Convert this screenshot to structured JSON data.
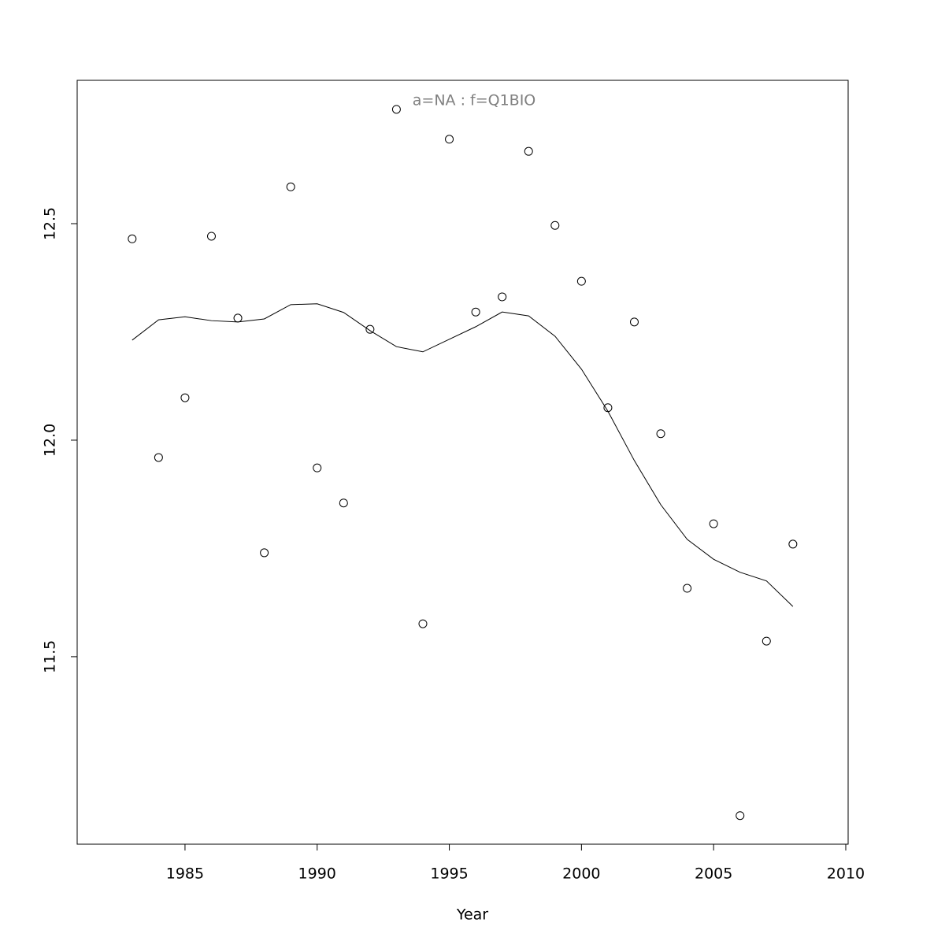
{
  "chart_data": {
    "type": "scatter",
    "title": "a=NA  :  f=Q1BIO",
    "x_label": "Year",
    "x": [
      1983,
      1984,
      1985,
      1986,
      1987,
      1988,
      1989,
      1990,
      1991,
      1992,
      1993,
      1994,
      1995,
      1996,
      1997,
      1998,
      1999,
      2000,
      2001,
      2002,
      2003,
      2004,
      2005,
      2006,
      2007,
      2008
    ],
    "series": [
      {
        "type": "scatter",
        "color": "#000000",
        "values": [
          12.465,
          11.96,
          12.098,
          12.471,
          12.282,
          11.74,
          12.585,
          11.936,
          11.855,
          12.256,
          12.764,
          11.576,
          12.695,
          12.296,
          12.331,
          12.667,
          12.496,
          12.367,
          12.075,
          12.273,
          12.015,
          11.658,
          11.807,
          11.133,
          11.536,
          11.76
        ]
      },
      {
        "type": "line",
        "color": "#000000",
        "values": [
          12.231,
          12.278,
          12.285,
          12.276,
          12.273,
          12.28,
          12.313,
          12.315,
          12.295,
          12.253,
          12.216,
          12.204,
          12.233,
          12.262,
          12.296,
          12.287,
          12.24,
          12.164,
          12.067,
          11.953,
          11.851,
          11.771,
          11.725,
          11.695,
          11.675,
          11.616
        ]
      }
    ],
    "xlim": [
      1980.92,
      2010.09
    ],
    "xticks": [
      1985,
      1990,
      1995,
      2000,
      2005,
      2010
    ],
    "ylim": [
      11.067,
      12.831
    ],
    "yticks": [
      11.5,
      {
        "value": 12,
        "label": "12.0"
      },
      12.5
    ],
    "title_color": "#808080"
  }
}
